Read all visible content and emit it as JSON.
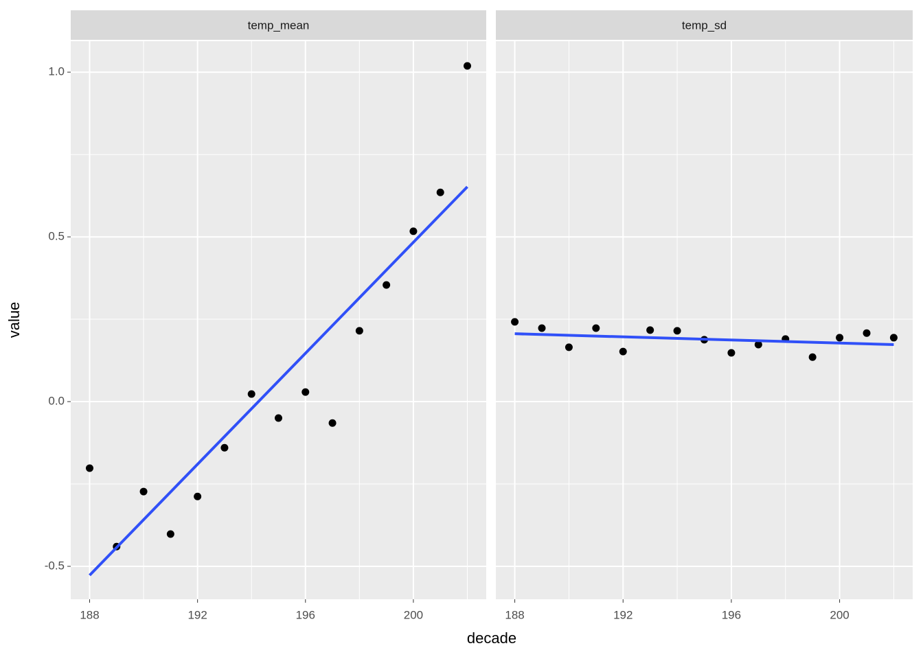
{
  "chart_data": {
    "type": "scatter",
    "x_label": "decade",
    "y_label": "value",
    "xlim": [
      187.3,
      202.7
    ],
    "ylim": [
      -0.6,
      1.094
    ],
    "xticks": [
      188,
      192,
      196,
      200
    ],
    "yticks": [
      {
        "value": -0.5,
        "label": "-0.5"
      },
      {
        "value": 0,
        "label": "0.0"
      },
      0.5,
      {
        "value": 1,
        "label": "1.0"
      }
    ],
    "grid": true,
    "point_color": "#000000",
    "fit_color": "#3050f8",
    "facets": [
      {
        "title": "temp_mean",
        "x": [
          188,
          189,
          190,
          191,
          192,
          193,
          194,
          195,
          196,
          197,
          198,
          199,
          200,
          201,
          202
        ],
        "values": [
          -0.202,
          -0.44,
          -0.273,
          -0.402,
          -0.288,
          -0.14,
          0.023,
          -0.05,
          0.029,
          -0.065,
          0.215,
          0.354,
          0.517,
          0.635,
          1.019
        ],
        "fit_x": [
          188,
          202
        ],
        "fit_values": [
          -0.527,
          0.652
        ]
      },
      {
        "title": "temp_sd",
        "x": [
          188,
          189,
          190,
          191,
          192,
          193,
          194,
          195,
          196,
          197,
          198,
          199,
          200,
          201,
          202
        ],
        "values": [
          0.242,
          0.223,
          0.165,
          0.223,
          0.152,
          0.217,
          0.215,
          0.188,
          0.148,
          0.173,
          0.19,
          0.135,
          0.194,
          0.208,
          0.194
        ],
        "fit_x": [
          188,
          202
        ],
        "fit_values": [
          0.206,
          0.173
        ]
      }
    ]
  }
}
